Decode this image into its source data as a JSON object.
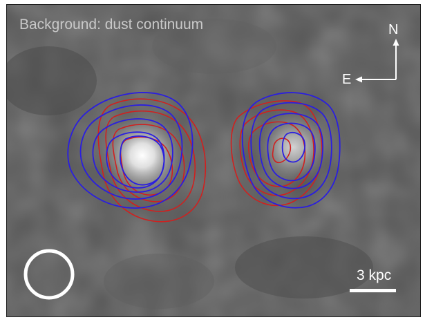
{
  "figure": {
    "background_label": "Background: dust continuum",
    "compass": {
      "north": "N",
      "east": "E"
    },
    "scale_bar": {
      "label": "3 kpc"
    },
    "colors": {
      "background": "#565656",
      "contour_red": "#d0201f",
      "contour_blue": "#2a1ee0",
      "beam": "#ffffff",
      "annotation": "#ffffff"
    }
  }
}
